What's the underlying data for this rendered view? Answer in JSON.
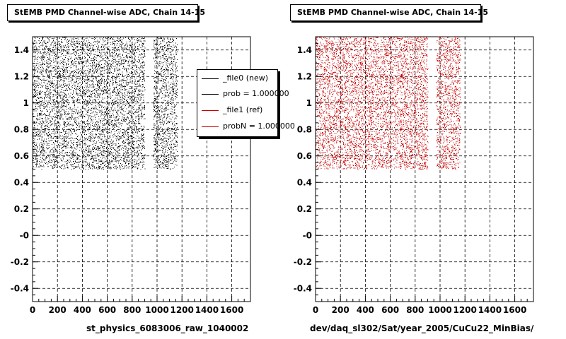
{
  "charts": [
    {
      "title": "StEMB PMD Channel-wise ADC, Chain 14-15",
      "xlabel": "st_physics_6083006_raw_1040002",
      "color": "#000000"
    },
    {
      "title": "StEMB PMD Channel-wise ADC, Chain 14-15",
      "xlabel": "dev/daq_sl302/Sat/year_2005/CuCu22_MinBias/",
      "color": "#cc0000"
    }
  ],
  "legend": {
    "entries": [
      {
        "label": "_file0 (new)",
        "color": "#000000"
      },
      {
        "label": "prob = 1.000000",
        "color": "#000000"
      },
      {
        "label": "_file1 (ref)",
        "color": "#cc0000"
      },
      {
        "label": "probN = 1.000000",
        "color": "#cc0000"
      }
    ]
  },
  "chart_data": [
    {
      "type": "scatter",
      "title": "StEMB PMD Channel-wise ADC, Chain 14-15",
      "xlabel": "st_physics_6083006_raw_1040002",
      "ylabel": "",
      "xlim": [
        0,
        1750
      ],
      "ylim": [
        -0.5,
        1.5
      ],
      "xticks": [
        "0",
        "200",
        "400",
        "600",
        "800",
        "1000",
        "1200",
        "1400",
        "1600"
      ],
      "yticks": [
        "-0.4",
        "-0.2",
        "-0",
        "0.2",
        "0.4",
        "0.6",
        "0.8",
        "1",
        "1.2",
        "1.4"
      ],
      "grid": true,
      "series": [
        {
          "name": "_file0 (new)",
          "color": "#000000",
          "x_ranges": [
            [
              0,
              900
            ],
            [
              970,
              1160
            ]
          ],
          "y_range": [
            0.5,
            1.5
          ]
        }
      ]
    },
    {
      "type": "scatter",
      "title": "StEMB PMD Channel-wise ADC, Chain 14-15",
      "xlabel": "dev/daq_sl302/Sat/year_2005/CuCu22_MinBias/",
      "ylabel": "",
      "xlim": [
        0,
        1750
      ],
      "ylim": [
        -0.5,
        1.5
      ],
      "xticks": [
        "0",
        "200",
        "400",
        "600",
        "800",
        "1000",
        "1200",
        "1400",
        "1600"
      ],
      "yticks": [
        "-0.4",
        "-0.2",
        "-0",
        "0.2",
        "0.4",
        "0.6",
        "0.8",
        "1",
        "1.2",
        "1.4"
      ],
      "grid": true,
      "series": [
        {
          "name": "_file1 (ref)",
          "color": "#cc0000",
          "x_ranges": [
            [
              0,
              900
            ],
            [
              970,
              1160
            ]
          ],
          "y_range": [
            0.5,
            1.5
          ]
        }
      ]
    }
  ]
}
